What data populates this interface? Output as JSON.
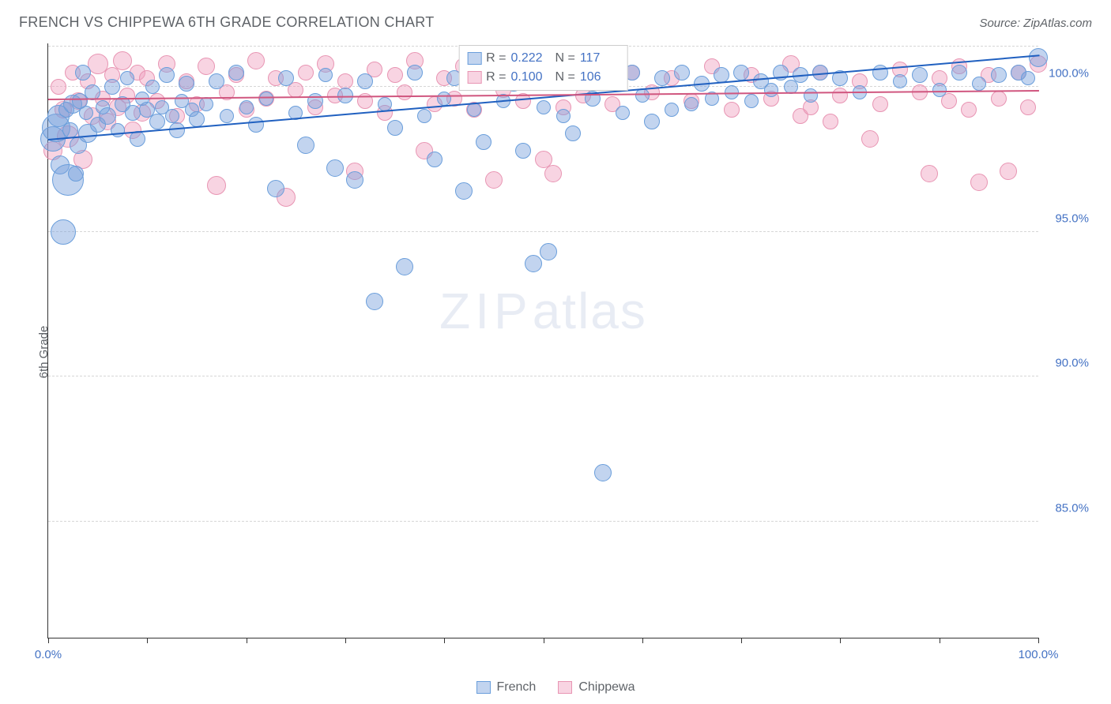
{
  "header": {
    "title": "FRENCH VS CHIPPEWA 6TH GRADE CORRELATION CHART",
    "source": "Source: ZipAtlas.com"
  },
  "chart": {
    "type": "scatter",
    "ylabel": "6th Grade",
    "xlim": [
      0,
      100
    ],
    "ylim": [
      81,
      101.5
    ],
    "xticks": [
      0,
      10,
      20,
      30,
      40,
      50,
      60,
      70,
      80,
      90,
      100
    ],
    "xtick_labels": {
      "0": "0.0%",
      "100": "100.0%"
    },
    "yticks": [
      85,
      90,
      95,
      100
    ],
    "ytick_labels": {
      "85": "85.0%",
      "90": "90.0%",
      "95": "95.0%",
      "100": "100.0%"
    },
    "gridlines_y": [
      85,
      90,
      95,
      100,
      101.4
    ],
    "background_color": "#ffffff",
    "grid_color": "#d6d6d6",
    "axis_color": "#333333",
    "label_color": "#5f6368",
    "tick_label_color": "#4472c4",
    "watermark": {
      "text_bold": "ZIP",
      "text_light": "atlas"
    },
    "series": [
      {
        "name": "French",
        "color_fill": "rgba(120,160,220,0.45)",
        "color_stroke": "#6a9edb",
        "trend_color": "#2060c0",
        "trend": {
          "x1": 0,
          "y1": 98.2,
          "x2": 100,
          "y2": 101.1
        },
        "r": "0.222",
        "n": "117",
        "points": [
          [
            0.5,
            98.2,
            16
          ],
          [
            0.8,
            98.6,
            18
          ],
          [
            1.0,
            99.0,
            14
          ],
          [
            1.2,
            97.3,
            12
          ],
          [
            1.5,
            95.0,
            16
          ],
          [
            1.8,
            99.2,
            10
          ],
          [
            2.0,
            96.8,
            20
          ],
          [
            2.2,
            98.5,
            10
          ],
          [
            2.5,
            99.4,
            12
          ],
          [
            2.8,
            97.0,
            10
          ],
          [
            3.0,
            98.0,
            11
          ],
          [
            3.2,
            99.5,
            10
          ],
          [
            3.5,
            100.5,
            10
          ],
          [
            3.8,
            99.1,
            9
          ],
          [
            4.0,
            98.4,
            12
          ],
          [
            4.5,
            99.8,
            10
          ],
          [
            5.0,
            98.7,
            10
          ],
          [
            5.5,
            99.3,
            9
          ],
          [
            6.0,
            99.0,
            11
          ],
          [
            6.5,
            100.0,
            10
          ],
          [
            7.0,
            98.5,
            9
          ],
          [
            7.5,
            99.4,
            10
          ],
          [
            8.0,
            100.3,
            9
          ],
          [
            8.5,
            99.1,
            10
          ],
          [
            9.0,
            98.2,
            10
          ],
          [
            9.5,
            99.6,
            9
          ],
          [
            10.0,
            99.2,
            10
          ],
          [
            10.5,
            100.0,
            9
          ],
          [
            11.0,
            98.8,
            10
          ],
          [
            11.5,
            99.3,
            9
          ],
          [
            12.0,
            100.4,
            10
          ],
          [
            12.5,
            99.0,
            9
          ],
          [
            13.0,
            98.5,
            10
          ],
          [
            13.5,
            99.5,
            9
          ],
          [
            14.0,
            100.1,
            10
          ],
          [
            14.5,
            99.2,
            9
          ],
          [
            15.0,
            98.9,
            10
          ],
          [
            16.0,
            99.4,
            9
          ],
          [
            17.0,
            100.2,
            10
          ],
          [
            18.0,
            99.0,
            9
          ],
          [
            19.0,
            100.5,
            10
          ],
          [
            20.0,
            99.3,
            9
          ],
          [
            21.0,
            98.7,
            10
          ],
          [
            22.0,
            99.6,
            9
          ],
          [
            23.0,
            96.5,
            11
          ],
          [
            24.0,
            100.3,
            10
          ],
          [
            25.0,
            99.1,
            9
          ],
          [
            26.0,
            98.0,
            11
          ],
          [
            27.0,
            99.5,
            10
          ],
          [
            28.0,
            100.4,
            9
          ],
          [
            29.0,
            97.2,
            11
          ],
          [
            30.0,
            99.7,
            10
          ],
          [
            31.0,
            96.8,
            11
          ],
          [
            32.0,
            100.2,
            10
          ],
          [
            33.0,
            92.6,
            11
          ],
          [
            34.0,
            99.4,
            9
          ],
          [
            35.0,
            98.6,
            10
          ],
          [
            36.0,
            93.8,
            11
          ],
          [
            37.0,
            100.5,
            10
          ],
          [
            38.0,
            99.0,
            9
          ],
          [
            39.0,
            97.5,
            10
          ],
          [
            40.0,
            99.6,
            9
          ],
          [
            41.0,
            100.3,
            10
          ],
          [
            42.0,
            96.4,
            11
          ],
          [
            43.0,
            99.2,
            9
          ],
          [
            44.0,
            98.1,
            10
          ],
          [
            45.0,
            100.4,
            10
          ],
          [
            46.0,
            99.5,
            9
          ],
          [
            47.0,
            100.1,
            10
          ],
          [
            48.0,
            97.8,
            10
          ],
          [
            49.0,
            93.9,
            11
          ],
          [
            50.0,
            99.3,
            9
          ],
          [
            50.5,
            94.3,
            11
          ],
          [
            51.0,
            100.5,
            10
          ],
          [
            52.0,
            99.0,
            9
          ],
          [
            53.0,
            98.4,
            10
          ],
          [
            54.0,
            100.2,
            9
          ],
          [
            55.0,
            99.6,
            10
          ],
          [
            56.0,
            86.7,
            11
          ],
          [
            57.0,
            100.4,
            10
          ],
          [
            58.0,
            99.1,
            9
          ],
          [
            59.0,
            100.5,
            10
          ],
          [
            60.0,
            99.7,
            9
          ],
          [
            61.0,
            98.8,
            10
          ],
          [
            62.0,
            100.3,
            10
          ],
          [
            63.0,
            99.2,
            9
          ],
          [
            64.0,
            100.5,
            10
          ],
          [
            65.0,
            99.4,
            9
          ],
          [
            66.0,
            100.1,
            10
          ],
          [
            67.0,
            99.6,
            9
          ],
          [
            68.0,
            100.4,
            10
          ],
          [
            69.0,
            99.8,
            9
          ],
          [
            70.0,
            100.5,
            10
          ],
          [
            71.0,
            99.5,
            9
          ],
          [
            72.0,
            100.2,
            10
          ],
          [
            73.0,
            99.9,
            9
          ],
          [
            74.0,
            100.5,
            10
          ],
          [
            75.0,
            100.0,
            9
          ],
          [
            76.0,
            100.4,
            10
          ],
          [
            77.0,
            99.7,
            9
          ],
          [
            78.0,
            100.5,
            10
          ],
          [
            80.0,
            100.3,
            10
          ],
          [
            82.0,
            99.8,
            9
          ],
          [
            84.0,
            100.5,
            10
          ],
          [
            86.0,
            100.2,
            9
          ],
          [
            88.0,
            100.4,
            10
          ],
          [
            90.0,
            99.9,
            9
          ],
          [
            92.0,
            100.5,
            10
          ],
          [
            94.0,
            100.1,
            9
          ],
          [
            96.0,
            100.4,
            10
          ],
          [
            98.0,
            100.5,
            10
          ],
          [
            99.0,
            100.3,
            9
          ],
          [
            100.0,
            101.0,
            12
          ]
        ]
      },
      {
        "name": "Chippewa",
        "color_fill": "rgba(240,160,190,0.45)",
        "color_stroke": "#e895b3",
        "trend_color": "#d0567f",
        "trend": {
          "x1": 0,
          "y1": 99.6,
          "x2": 100,
          "y2": 99.9
        },
        "r": "0.100",
        "n": "106",
        "points": [
          [
            0.5,
            97.8,
            12
          ],
          [
            1.0,
            100.0,
            10
          ],
          [
            1.5,
            99.2,
            11
          ],
          [
            2.0,
            98.3,
            14
          ],
          [
            2.5,
            100.5,
            10
          ],
          [
            3.0,
            99.5,
            11
          ],
          [
            3.5,
            97.5,
            12
          ],
          [
            4.0,
            100.2,
            10
          ],
          [
            4.5,
            99.0,
            11
          ],
          [
            5.0,
            100.8,
            13
          ],
          [
            5.5,
            99.6,
            10
          ],
          [
            6.0,
            98.8,
            11
          ],
          [
            6.5,
            100.4,
            10
          ],
          [
            7.0,
            99.3,
            11
          ],
          [
            7.5,
            100.9,
            12
          ],
          [
            8.0,
            99.7,
            10
          ],
          [
            8.5,
            98.5,
            11
          ],
          [
            9.0,
            100.5,
            10
          ],
          [
            9.5,
            99.1,
            11
          ],
          [
            10.0,
            100.3,
            10
          ],
          [
            11.0,
            99.5,
            10
          ],
          [
            12.0,
            100.8,
            11
          ],
          [
            13.0,
            99.0,
            10
          ],
          [
            14.0,
            100.2,
            10
          ],
          [
            15.0,
            99.4,
            10
          ],
          [
            16.0,
            100.7,
            11
          ],
          [
            17.0,
            96.6,
            12
          ],
          [
            18.0,
            99.8,
            10
          ],
          [
            19.0,
            100.4,
            10
          ],
          [
            20.0,
            99.2,
            10
          ],
          [
            21.0,
            100.9,
            11
          ],
          [
            22.0,
            99.6,
            10
          ],
          [
            23.0,
            100.3,
            10
          ],
          [
            24.0,
            96.2,
            12
          ],
          [
            25.0,
            99.9,
            10
          ],
          [
            26.0,
            100.5,
            10
          ],
          [
            27.0,
            99.3,
            10
          ],
          [
            28.0,
            100.8,
            11
          ],
          [
            29.0,
            99.7,
            10
          ],
          [
            30.0,
            100.2,
            10
          ],
          [
            31.0,
            97.1,
            11
          ],
          [
            32.0,
            99.5,
            10
          ],
          [
            33.0,
            100.6,
            10
          ],
          [
            34.0,
            99.1,
            10
          ],
          [
            35.0,
            100.4,
            10
          ],
          [
            36.0,
            99.8,
            10
          ],
          [
            37.0,
            100.9,
            11
          ],
          [
            38.0,
            97.8,
            11
          ],
          [
            39.0,
            99.4,
            10
          ],
          [
            40.0,
            100.3,
            10
          ],
          [
            41.0,
            99.6,
            10
          ],
          [
            42.0,
            100.7,
            11
          ],
          [
            43.0,
            99.2,
            10
          ],
          [
            44.0,
            100.5,
            10
          ],
          [
            45.0,
            96.8,
            11
          ],
          [
            46.0,
            99.9,
            10
          ],
          [
            47.0,
            100.2,
            10
          ],
          [
            48.0,
            99.5,
            10
          ],
          [
            49.0,
            100.8,
            11
          ],
          [
            50.0,
            97.5,
            11
          ],
          [
            51.0,
            97.0,
            11
          ],
          [
            52.0,
            99.3,
            10
          ],
          [
            53.0,
            100.4,
            10
          ],
          [
            54.0,
            99.7,
            10
          ],
          [
            55.0,
            100.6,
            10
          ],
          [
            57.0,
            99.4,
            10
          ],
          [
            59.0,
            100.5,
            10
          ],
          [
            61.0,
            99.8,
            10
          ],
          [
            63.0,
            100.3,
            10
          ],
          [
            65.0,
            99.5,
            10
          ],
          [
            67.0,
            100.7,
            10
          ],
          [
            69.0,
            99.2,
            10
          ],
          [
            71.0,
            100.4,
            10
          ],
          [
            73.0,
            99.6,
            10
          ],
          [
            75.0,
            100.8,
            11
          ],
          [
            76.0,
            99.0,
            10
          ],
          [
            77.0,
            99.3,
            10
          ],
          [
            78.0,
            100.5,
            10
          ],
          [
            79.0,
            98.8,
            10
          ],
          [
            80.0,
            99.7,
            10
          ],
          [
            82.0,
            100.2,
            10
          ],
          [
            83.0,
            98.2,
            11
          ],
          [
            84.0,
            99.4,
            10
          ],
          [
            86.0,
            100.6,
            10
          ],
          [
            88.0,
            99.8,
            10
          ],
          [
            89.0,
            97.0,
            11
          ],
          [
            90.0,
            100.3,
            10
          ],
          [
            91.0,
            99.5,
            10
          ],
          [
            92.0,
            100.7,
            10
          ],
          [
            93.0,
            99.2,
            10
          ],
          [
            94.0,
            96.7,
            11
          ],
          [
            95.0,
            100.4,
            10
          ],
          [
            96.0,
            99.6,
            10
          ],
          [
            97.0,
            97.1,
            11
          ],
          [
            98.0,
            100.5,
            10
          ],
          [
            99.0,
            99.3,
            10
          ],
          [
            100.0,
            100.8,
            11
          ]
        ]
      }
    ],
    "legend_top": {
      "rows": [
        {
          "swatch_fill": "rgba(120,160,220,0.45)",
          "swatch_stroke": "#6a9edb",
          "r_label": "R =",
          "r": "0.222",
          "n_label": "N =",
          "n": "117"
        },
        {
          "swatch_fill": "rgba(240,160,190,0.45)",
          "swatch_stroke": "#e895b3",
          "r_label": "R =",
          "r": "0.100",
          "n_label": "N =",
          "n": "106"
        }
      ]
    },
    "legend_bottom": [
      {
        "swatch_fill": "rgba(120,160,220,0.45)",
        "swatch_stroke": "#6a9edb",
        "label": "French"
      },
      {
        "swatch_fill": "rgba(240,160,190,0.45)",
        "swatch_stroke": "#e895b3",
        "label": "Chippewa"
      }
    ]
  }
}
